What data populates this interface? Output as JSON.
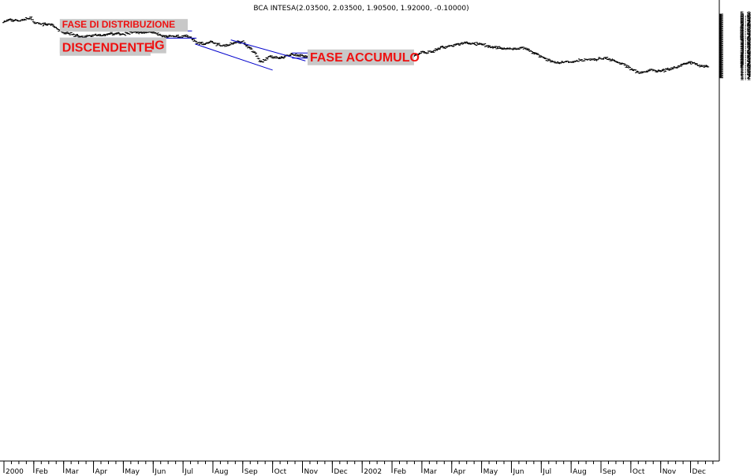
{
  "chart_data": {
    "type": "ohlc",
    "title": "BCA INTESA(2.03500, 2.03500, 1.90500, 1.92000, -0.10000)",
    "xlabel": "",
    "ylabel": "",
    "ylim": [
      1.0,
      5.9
    ],
    "y_ticks": [
      5.8,
      5.7,
      5.6,
      5.5,
      5.4,
      5.3,
      5.2,
      5.1,
      5.0,
      4.9,
      4.8,
      4.7,
      4.6,
      4.5,
      4.4,
      4.3,
      4.2,
      4.1,
      4.0,
      3.9,
      3.8,
      3.7,
      3.6,
      3.5,
      3.4,
      3.3,
      3.2,
      3.1,
      3.0,
      2.9,
      2.8,
      2.7,
      2.6,
      2.5,
      2.4,
      2.3,
      2.2,
      2.1,
      2.0,
      1.9,
      1.8,
      1.7,
      1.6,
      1.5,
      1.4,
      1.3,
      1.2,
      1.1
    ],
    "x_range_months": [
      0,
      23.9
    ],
    "month_labels": [
      {
        "label": "2000",
        "m": 0
      },
      {
        "label": "Feb",
        "m": 1
      },
      {
        "label": "Mar",
        "m": 2
      },
      {
        "label": "Apr",
        "m": 3
      },
      {
        "label": "May",
        "m": 4
      },
      {
        "label": "Jun",
        "m": 5
      },
      {
        "label": "Jul",
        "m": 6
      },
      {
        "label": "Aug",
        "m": 7
      },
      {
        "label": "Sep",
        "m": 8
      },
      {
        "label": "Oct",
        "m": 9
      },
      {
        "label": "Nov",
        "m": 10
      },
      {
        "label": "Dec",
        "m": 11
      },
      {
        "label": "2002",
        "m": 12
      },
      {
        "label": "Feb",
        "m": 13
      },
      {
        "label": "Mar",
        "m": 14
      },
      {
        "label": "Apr",
        "m": 15
      },
      {
        "label": "May",
        "m": 16
      },
      {
        "label": "Jun",
        "m": 17
      },
      {
        "label": "Jul",
        "m": 18
      },
      {
        "label": "Aug",
        "m": 19
      },
      {
        "label": "Sep",
        "m": 20
      },
      {
        "label": "Oct",
        "m": 21
      },
      {
        "label": "Nov",
        "m": 22
      },
      {
        "label": "Dec",
        "m": 23
      }
    ],
    "price_path": [
      [
        0.0,
        5.25
      ],
      [
        0.4,
        5.35
      ],
      [
        0.9,
        5.45
      ],
      [
        1.05,
        5.15
      ],
      [
        1.6,
        5.0
      ],
      [
        1.9,
        4.6
      ],
      [
        2.2,
        4.35
      ],
      [
        2.6,
        4.1
      ],
      [
        3.2,
        4.25
      ],
      [
        3.8,
        4.35
      ],
      [
        4.4,
        4.45
      ],
      [
        4.9,
        4.5
      ],
      [
        5.3,
        4.2
      ],
      [
        5.8,
        4.1
      ],
      [
        6.1,
        4.2
      ],
      [
        6.3,
        3.95
      ],
      [
        6.5,
        3.65
      ],
      [
        6.9,
        3.7
      ],
      [
        7.3,
        3.5
      ],
      [
        7.6,
        3.6
      ],
      [
        8.0,
        3.75
      ],
      [
        8.3,
        3.2
      ],
      [
        8.6,
        2.25
      ],
      [
        8.9,
        2.7
      ],
      [
        9.2,
        2.5
      ],
      [
        9.6,
        2.85
      ],
      [
        10.0,
        2.7
      ],
      [
        10.4,
        2.55
      ],
      [
        10.8,
        2.85
      ],
      [
        11.3,
        2.7
      ],
      [
        11.8,
        2.75
      ],
      [
        12.2,
        2.8
      ],
      [
        12.5,
        2.65
      ],
      [
        12.8,
        3.0
      ],
      [
        13.1,
        2.75
      ],
      [
        13.4,
        2.45
      ],
      [
        13.8,
        2.8
      ],
      [
        14.3,
        3.05
      ],
      [
        14.8,
        3.4
      ],
      [
        15.2,
        3.55
      ],
      [
        15.5,
        3.7
      ],
      [
        15.9,
        3.6
      ],
      [
        16.3,
        3.4
      ],
      [
        16.8,
        3.25
      ],
      [
        17.3,
        3.3
      ],
      [
        17.6,
        3.15
      ],
      [
        17.9,
        2.8
      ],
      [
        18.2,
        2.4
      ],
      [
        18.6,
        2.2
      ],
      [
        19.1,
        2.35
      ],
      [
        19.6,
        2.4
      ],
      [
        20.0,
        2.55
      ],
      [
        20.4,
        2.4
      ],
      [
        20.7,
        2.15
      ],
      [
        21.0,
        1.75
      ],
      [
        21.3,
        1.5
      ],
      [
        21.7,
        1.65
      ],
      [
        22.0,
        1.6
      ],
      [
        22.4,
        1.75
      ],
      [
        22.7,
        2.05
      ],
      [
        23.0,
        2.2
      ],
      [
        23.3,
        2.05
      ],
      [
        23.6,
        1.95
      ]
    ],
    "annotations": [
      {
        "text": "FASE DI DISTRIBUZIONE",
        "m": 1.95,
        "y": 4.8,
        "size": 12
      },
      {
        "text": "FASE TRENDING",
        "m": 1.95,
        "y": 3.2,
        "size": 16
      },
      {
        "text": "DISCENDENTE",
        "m": 1.95,
        "y": 3.02,
        "size": 16
      },
      {
        "text": "FASE ACCUMULO",
        "m": 10.25,
        "y": 2.32,
        "size": 16
      }
    ],
    "lines": [
      {
        "m1": 2.25,
        "y1": 4.56,
        "m2": 6.3,
        "y2": 4.56
      },
      {
        "m1": 2.25,
        "y1": 4.03,
        "m2": 6.45,
        "y2": 4.03
      },
      {
        "m1": 6.4,
        "y1": 3.6,
        "m2": 9.0,
        "y2": 1.67
      },
      {
        "m1": 7.6,
        "y1": 3.9,
        "m2": 10.1,
        "y2": 2.35
      },
      {
        "m1": 9.65,
        "y1": 2.93,
        "m2": 13.25,
        "y2": 2.93
      },
      {
        "m1": 9.65,
        "y1": 2.55,
        "m2": 13.25,
        "y2": 2.55
      }
    ]
  }
}
